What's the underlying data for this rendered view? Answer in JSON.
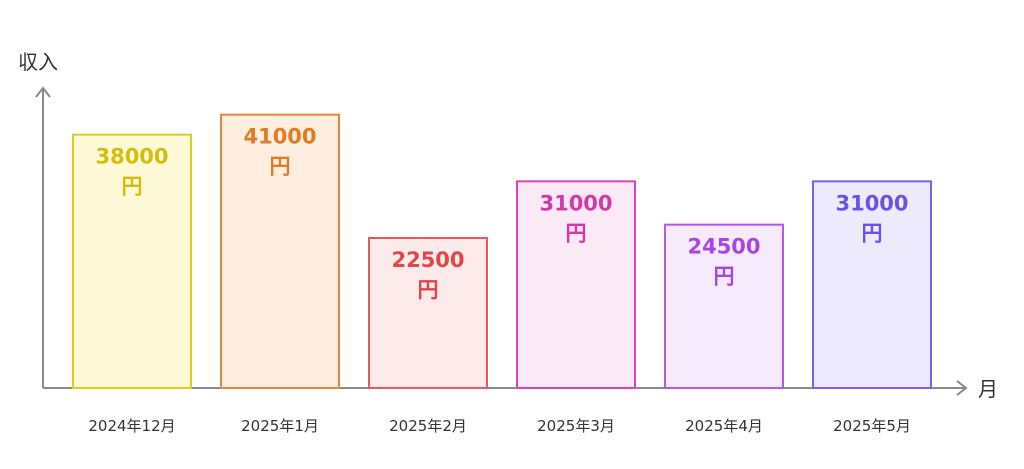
{
  "chart_data": {
    "type": "bar",
    "ylabel": "収入",
    "xlabel": "月",
    "categories": [
      "2024年12月",
      "2025年1月",
      "2025年2月",
      "2025年3月",
      "2025年4月",
      "2025年5月"
    ],
    "values": [
      38000,
      41000,
      22500,
      31000,
      24500,
      31000
    ],
    "value_unit": "円",
    "ylim": [
      0,
      45000
    ],
    "grid": false,
    "bar_colors": [
      {
        "stroke": "#e0cc1c",
        "fill": "#fdf9d7",
        "text": "#d4bd0c"
      },
      {
        "stroke": "#e3873a",
        "fill": "#fdeee0",
        "text": "#e07c25"
      },
      {
        "stroke": "#e55a5a",
        "fill": "#fdeaea",
        "text": "#e04848"
      },
      {
        "stroke": "#d946b3",
        "fill": "#fbe9f6",
        "text": "#d23aa8"
      },
      {
        "stroke": "#b35ae8",
        "fill": "#f5ebfd",
        "text": "#a846e0"
      },
      {
        "stroke": "#7b62e8",
        "fill": "#eeeafd",
        "text": "#6c52e0"
      }
    ]
  }
}
